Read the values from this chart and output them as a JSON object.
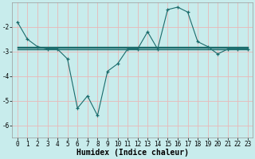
{
  "xlabel": "Humidex (Indice chaleur)",
  "bg_color": "#c8ecec",
  "grid_color": "#e8b8b8",
  "line_color": "#1a6b6b",
  "x_hours": [
    0,
    1,
    2,
    3,
    4,
    5,
    6,
    7,
    8,
    9,
    10,
    11,
    12,
    13,
    14,
    15,
    16,
    17,
    18,
    19,
    20,
    21,
    22,
    23
  ],
  "series_main": [
    -1.8,
    -2.5,
    -2.8,
    -2.9,
    -2.9,
    -3.3,
    -5.3,
    -4.8,
    -5.6,
    -3.8,
    -3.5,
    -2.9,
    -2.9,
    -2.2,
    -2.9,
    -1.3,
    -1.2,
    -1.4,
    -2.6,
    -2.8,
    -3.1,
    -2.9,
    -2.9,
    -2.9
  ],
  "series_line1": [
    -2.9,
    -2.9,
    -2.9,
    -2.9,
    -2.9,
    -2.9,
    -2.9,
    -2.9,
    -2.9,
    -2.9,
    -2.9,
    -2.9,
    -2.9,
    -2.9,
    -2.9,
    -2.9,
    -2.9,
    -2.9,
    -2.9,
    -2.9,
    -2.9,
    -2.9,
    -2.9,
    -2.9
  ],
  "series_line2": [
    -2.8,
    -2.8,
    -2.8,
    -2.8,
    -2.8,
    -2.8,
    -2.8,
    -2.8,
    -2.8,
    -2.8,
    -2.8,
    -2.8,
    -2.8,
    -2.8,
    -2.8,
    -2.8,
    -2.8,
    -2.8,
    -2.8,
    -2.8,
    -2.8,
    -2.8,
    -2.8,
    -2.8
  ],
  "series_line3": [
    -2.85,
    -2.85,
    -2.85,
    -2.85,
    -2.85,
    -2.85,
    -2.85,
    -2.85,
    -2.85,
    -2.85,
    -2.85,
    -2.85,
    -2.85,
    -2.85,
    -2.85,
    -2.85,
    -2.85,
    -2.85,
    -2.85,
    -2.85,
    -2.85,
    -2.85,
    -2.85,
    -2.85
  ],
  "ylim": [
    -6.5,
    -1.0
  ],
  "yticks": [
    -6,
    -5,
    -4,
    -3,
    -2
  ],
  "xlim": [
    -0.5,
    23.5
  ],
  "xlabel_fontsize": 7,
  "tick_fontsize": 5.5,
  "figsize": [
    3.2,
    2.0
  ],
  "dpi": 100
}
